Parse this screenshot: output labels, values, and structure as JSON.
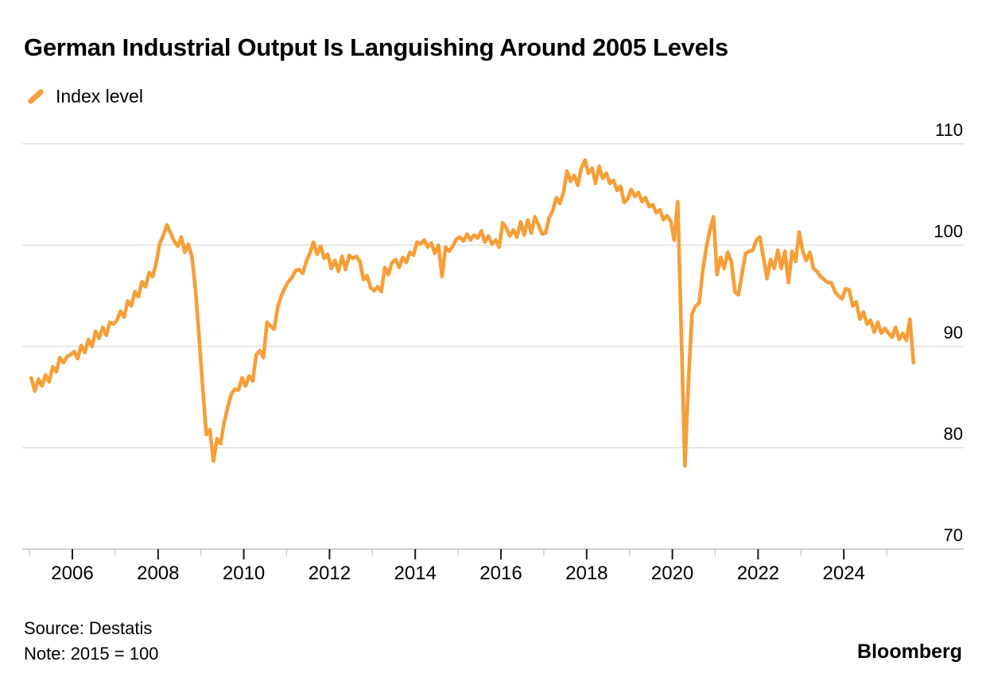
{
  "header": {
    "title": "German Industrial Output Is Languishing Around 2005 Levels"
  },
  "legend": {
    "label": "Index level"
  },
  "footer": {
    "source": "Source: Destatis",
    "note": "Note: 2015 = 100",
    "brand": "Bloomberg"
  },
  "colors": {
    "line": "#F79E37",
    "grid": "#d9d9d9",
    "axis": "#c2c2c2",
    "major_tick": "#1a1a1a",
    "minor_tick": "#c6c6c6",
    "text": "#000000"
  },
  "chart_data": {
    "type": "line",
    "title": "German Industrial Output Is Languishing Around 2005 Levels",
    "series_name": "Index level",
    "note": "2015 = 100",
    "source": "Destatis",
    "frequency": "monthly",
    "x_start_year": 2005,
    "x_start_month": 1,
    "x_ticks_major": [
      2006,
      2008,
      2010,
      2012,
      2014,
      2016,
      2018,
      2020,
      2022,
      2024
    ],
    "x_ticks_minor": [
      2005,
      2007,
      2009,
      2011,
      2013,
      2015,
      2017,
      2019,
      2021,
      2023,
      2025
    ],
    "y_ticks": [
      110,
      100,
      90,
      80,
      70
    ],
    "ylim": [
      70,
      110
    ],
    "xlim": [
      2004.9,
      2025.9
    ],
    "grid": "horizontal",
    "legend_position": "top-left",
    "values": [
      86.9,
      85.6,
      86.8,
      86.1,
      87.2,
      86.5,
      88.0,
      87.5,
      88.9,
      88.4,
      89.0,
      89.2,
      89.5,
      88.8,
      90.1,
      89.4,
      90.7,
      90.0,
      91.5,
      90.8,
      91.9,
      91.1,
      92.4,
      92.2,
      92.6,
      93.5,
      92.9,
      94.5,
      94.0,
      95.4,
      94.9,
      96.4,
      95.9,
      97.3,
      96.9,
      98.3,
      100.2,
      101.0,
      102.0,
      101.2,
      100.4,
      99.9,
      100.8,
      99.3,
      100.1,
      98.8,
      95.5,
      90.8,
      86.0,
      81.3,
      81.8,
      78.7,
      80.9,
      80.4,
      82.5,
      84.0,
      85.3,
      85.8,
      85.7,
      86.9,
      86.1,
      87.1,
      86.6,
      89.2,
      89.6,
      88.9,
      92.4,
      92.0,
      91.7,
      93.9,
      95.0,
      95.8,
      96.4,
      96.8,
      97.5,
      97.6,
      97.2,
      98.4,
      99.2,
      100.3,
      99.1,
      99.9,
      98.7,
      99.1,
      97.7,
      98.5,
      97.4,
      98.9,
      97.6,
      99.0,
      98.7,
      98.9,
      98.4,
      96.6,
      97.0,
      95.8,
      95.5,
      95.9,
      95.4,
      97.8,
      97.1,
      98.3,
      98.6,
      97.8,
      98.8,
      98.3,
      99.3,
      99.0,
      100.3,
      100.1,
      100.5,
      99.8,
      100.2,
      99.2,
      100.0,
      96.9,
      99.8,
      99.4,
      99.9,
      100.6,
      100.8,
      100.4,
      101.1,
      100.5,
      101.0,
      100.7,
      101.4,
      100.3,
      100.9,
      100.1,
      100.5,
      99.8,
      102.2,
      101.7,
      100.9,
      101.5,
      100.8,
      102.3,
      101.0,
      102.5,
      101.2,
      102.8,
      102.0,
      101.1,
      101.2,
      102.7,
      103.4,
      104.7,
      104.1,
      105.2,
      107.3,
      106.3,
      106.9,
      105.9,
      107.6,
      108.4,
      107.1,
      107.6,
      106.1,
      107.8,
      106.6,
      107.1,
      106.1,
      106.4,
      105.4,
      105.8,
      104.2,
      104.6,
      105.5,
      104.8,
      105.2,
      104.3,
      104.7,
      103.8,
      104.0,
      103.2,
      103.5,
      102.5,
      102.9,
      102.4,
      100.5,
      104.3,
      91.5,
      78.2,
      86.5,
      93.2,
      94.0,
      94.3,
      97.5,
      99.8,
      101.5,
      102.8,
      97.1,
      98.8,
      97.7,
      99.3,
      98.4,
      95.4,
      95.1,
      97.2,
      99.2,
      99.4,
      99.5,
      100.5,
      100.8,
      98.8,
      96.7,
      98.6,
      97.7,
      99.5,
      97.7,
      99.4,
      96.3,
      99.4,
      98.4,
      101.3,
      99.4,
      98.5,
      99.3,
      97.7,
      97.4,
      96.9,
      96.6,
      96.3,
      96.3,
      95.4,
      95.0,
      94.7,
      95.7,
      95.6,
      94.0,
      94.4,
      92.7,
      93.4,
      92.2,
      92.6,
      91.4,
      92.4,
      91.3,
      91.8,
      91.3,
      90.9,
      91.9,
      90.7,
      91.3,
      90.6,
      92.7,
      88.4
    ]
  }
}
